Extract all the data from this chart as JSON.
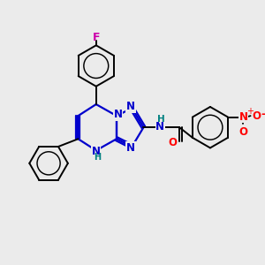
{
  "bg_color": "#ebebeb",
  "bond_color": "#000000",
  "aromatic_color": "#0000cc",
  "F_color": "#cc00aa",
  "H_color": "#008080",
  "O_color": "#ff0000",
  "N_color": "#0000cc",
  "figsize": [
    3.0,
    3.0
  ],
  "dpi": 100,
  "xlim": [
    0,
    10
  ],
  "ylim": [
    0,
    10
  ]
}
